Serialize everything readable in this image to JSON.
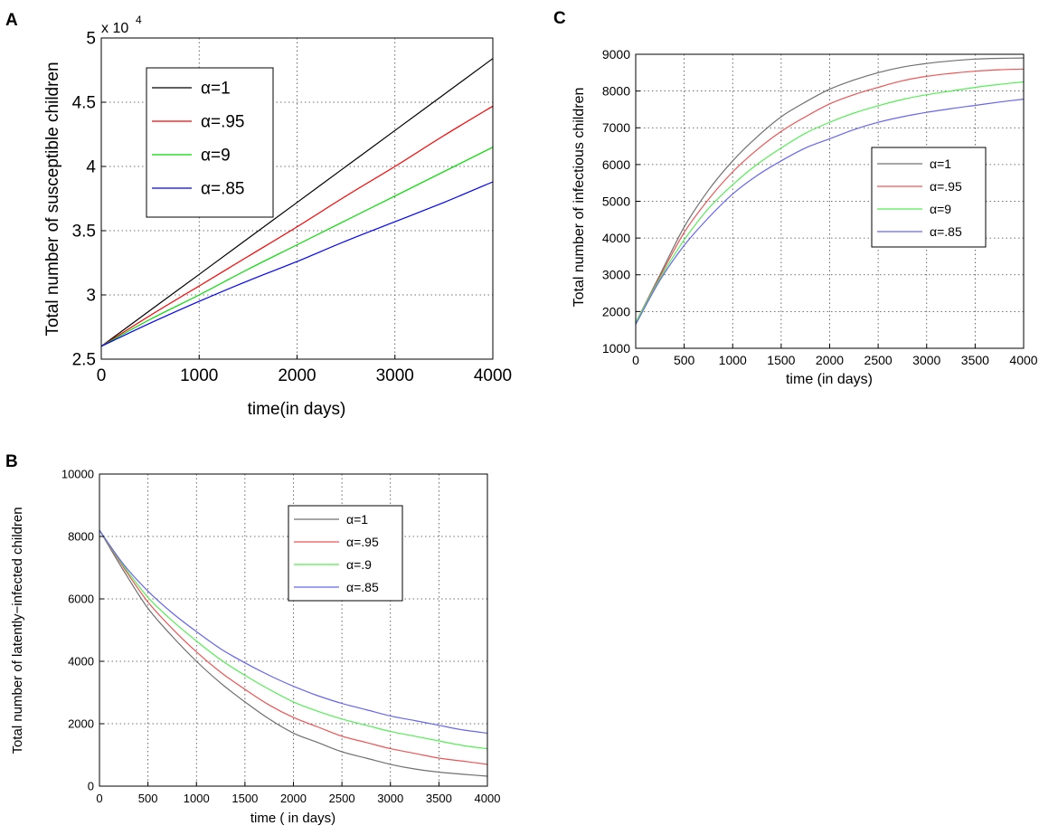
{
  "figure": {
    "panels": [
      "A",
      "B",
      "C"
    ]
  },
  "chart_data": [
    {
      "panel": "A",
      "type": "line",
      "title": "",
      "xlabel": "time(in days)",
      "ylabel": "Total number of susceptible children",
      "multiplier_base": "x 10",
      "multiplier_exp": "4",
      "xlim": [
        0,
        4000
      ],
      "ylim": [
        2.5,
        5
      ],
      "xticks": [
        0,
        1000,
        2000,
        3000,
        4000
      ],
      "xtick_labels": [
        "0",
        "1000",
        "2000",
        "3000",
        "4000"
      ],
      "yticks": [
        2.5,
        3,
        3.5,
        4,
        4.5,
        5
      ],
      "ytick_labels": [
        "2.5",
        "3",
        "3.5",
        "4",
        "4.5",
        "5"
      ],
      "grid": true,
      "legend_position": "top-left",
      "series": [
        {
          "name": "α=1",
          "color": "#000000",
          "x": [
            0,
            500,
            1000,
            1500,
            2000,
            2500,
            3000,
            3500,
            4000
          ],
          "values": [
            2.6,
            2.88,
            3.16,
            3.44,
            3.72,
            4.0,
            4.28,
            4.56,
            4.84
          ]
        },
        {
          "name": "α=.95",
          "color": "#ff0000",
          "x": [
            0,
            500,
            1000,
            1500,
            2000,
            2500,
            3000,
            3500,
            4000
          ],
          "values": [
            2.6,
            2.84,
            3.07,
            3.3,
            3.53,
            3.77,
            4.0,
            4.24,
            4.47
          ]
        },
        {
          "name": "α=9",
          "color": "#00dd00",
          "x": [
            0,
            500,
            1000,
            1500,
            2000,
            2500,
            3000,
            3500,
            4000
          ],
          "values": [
            2.6,
            2.81,
            3.0,
            3.2,
            3.39,
            3.58,
            3.77,
            3.96,
            4.15
          ]
        },
        {
          "name": "α=.85",
          "color": "#0000ff",
          "x": [
            0,
            500,
            1000,
            1500,
            2000,
            2500,
            3000,
            3500,
            4000
          ],
          "values": [
            2.6,
            2.78,
            2.95,
            3.11,
            3.26,
            3.42,
            3.57,
            3.72,
            3.88
          ]
        }
      ]
    },
    {
      "panel": "B",
      "type": "line",
      "title": "",
      "xlabel": "time ( in days)",
      "ylabel": "Total number of latently−infected children",
      "xlim": [
        0,
        4000
      ],
      "ylim": [
        0,
        10000
      ],
      "xticks": [
        0,
        500,
        1000,
        1500,
        2000,
        2500,
        3000,
        3500,
        4000
      ],
      "xtick_labels": [
        "0",
        "500",
        "1000",
        "1500",
        "2000",
        "2500",
        "3000",
        "3500",
        "4000"
      ],
      "yticks": [
        0,
        2000,
        4000,
        6000,
        8000,
        10000
      ],
      "ytick_labels": [
        "0",
        "2000",
        "4000",
        "6000",
        "8000",
        "10000"
      ],
      "grid": true,
      "legend_position": "top-right",
      "series": [
        {
          "name": "α=1",
          "color": "#707070",
          "x": [
            0,
            250,
            500,
            750,
            1000,
            1250,
            1500,
            1750,
            2000,
            2250,
            2500,
            2750,
            3000,
            3250,
            3500,
            3750,
            4000
          ],
          "values": [
            8200,
            6900,
            5700,
            4800,
            4000,
            3300,
            2700,
            2150,
            1700,
            1400,
            1100,
            900,
            700,
            550,
            450,
            380,
            320
          ]
        },
        {
          "name": "α=.95",
          "color": "#ee5555",
          "x": [
            0,
            250,
            500,
            750,
            1000,
            1250,
            1500,
            1750,
            2000,
            2250,
            2500,
            2750,
            3000,
            3250,
            3500,
            3750,
            4000
          ],
          "values": [
            8200,
            7000,
            5900,
            5050,
            4300,
            3650,
            3100,
            2600,
            2200,
            1900,
            1600,
            1400,
            1200,
            1050,
            900,
            800,
            700
          ]
        },
        {
          "name": "α=.9",
          "color": "#55ee55",
          "x": [
            0,
            250,
            500,
            750,
            1000,
            1250,
            1500,
            1750,
            2000,
            2250,
            2500,
            2750,
            3000,
            3250,
            3500,
            3750,
            4000
          ],
          "values": [
            8200,
            7050,
            6050,
            5300,
            4650,
            4050,
            3550,
            3100,
            2700,
            2400,
            2150,
            1950,
            1750,
            1600,
            1450,
            1300,
            1200
          ]
        },
        {
          "name": "α=.85",
          "color": "#6666ee",
          "x": [
            0,
            250,
            500,
            750,
            1000,
            1250,
            1500,
            1750,
            2000,
            2250,
            2500,
            2750,
            3000,
            3250,
            3500,
            3750,
            4000
          ],
          "values": [
            8200,
            7100,
            6250,
            5550,
            4950,
            4400,
            3950,
            3550,
            3200,
            2900,
            2650,
            2450,
            2250,
            2100,
            1950,
            1800,
            1700
          ]
        }
      ]
    },
    {
      "panel": "C",
      "type": "line",
      "title": "",
      "xlabel": "time (in days)",
      "ylabel": "Total number of infectious children",
      "xlim": [
        0,
        4000
      ],
      "ylim": [
        1000,
        9000
      ],
      "xticks": [
        0,
        500,
        1000,
        1500,
        2000,
        2500,
        3000,
        3500,
        4000
      ],
      "xtick_labels": [
        "0",
        "500",
        "1000",
        "1500",
        "2000",
        "2500",
        "3000",
        "3500",
        "4000"
      ],
      "yticks": [
        1000,
        2000,
        3000,
        4000,
        5000,
        6000,
        7000,
        8000,
        9000
      ],
      "ytick_labels": [
        "1000",
        "2000",
        "3000",
        "4000",
        "5000",
        "6000",
        "7000",
        "8000",
        "9000"
      ],
      "grid": true,
      "legend_position": "right",
      "series": [
        {
          "name": "α=1",
          "color": "#707070",
          "x": [
            0,
            250,
            500,
            750,
            1000,
            1250,
            1500,
            1750,
            2000,
            2250,
            2500,
            2750,
            3000,
            3250,
            3500,
            3750,
            4000
          ],
          "values": [
            1700,
            3000,
            4300,
            5300,
            6100,
            6750,
            7300,
            7700,
            8050,
            8300,
            8500,
            8650,
            8750,
            8820,
            8870,
            8890,
            8900
          ]
        },
        {
          "name": "α=.95",
          "color": "#ee5555",
          "x": [
            0,
            250,
            500,
            750,
            1000,
            1250,
            1500,
            1750,
            2000,
            2250,
            2500,
            2750,
            3000,
            3250,
            3500,
            3750,
            4000
          ],
          "values": [
            1700,
            2950,
            4150,
            5050,
            5800,
            6400,
            6900,
            7300,
            7650,
            7900,
            8100,
            8280,
            8400,
            8480,
            8540,
            8580,
            8600
          ]
        },
        {
          "name": "α=9",
          "color": "#55ee55",
          "x": [
            0,
            250,
            500,
            750,
            1000,
            1250,
            1500,
            1750,
            2000,
            2250,
            2500,
            2750,
            3000,
            3250,
            3500,
            3750,
            4000
          ],
          "values": [
            1700,
            2900,
            3950,
            4800,
            5450,
            6000,
            6450,
            6850,
            7150,
            7400,
            7600,
            7770,
            7900,
            8000,
            8100,
            8180,
            8250
          ]
        },
        {
          "name": "α=.85",
          "color": "#6666ee",
          "x": [
            0,
            250,
            500,
            750,
            1000,
            1250,
            1500,
            1750,
            2000,
            2250,
            2500,
            2750,
            3000,
            3250,
            3500,
            3750,
            4000
          ],
          "values": [
            1650,
            2850,
            3800,
            4550,
            5200,
            5700,
            6100,
            6450,
            6700,
            6950,
            7150,
            7300,
            7420,
            7520,
            7610,
            7700,
            7780
          ]
        }
      ]
    }
  ]
}
